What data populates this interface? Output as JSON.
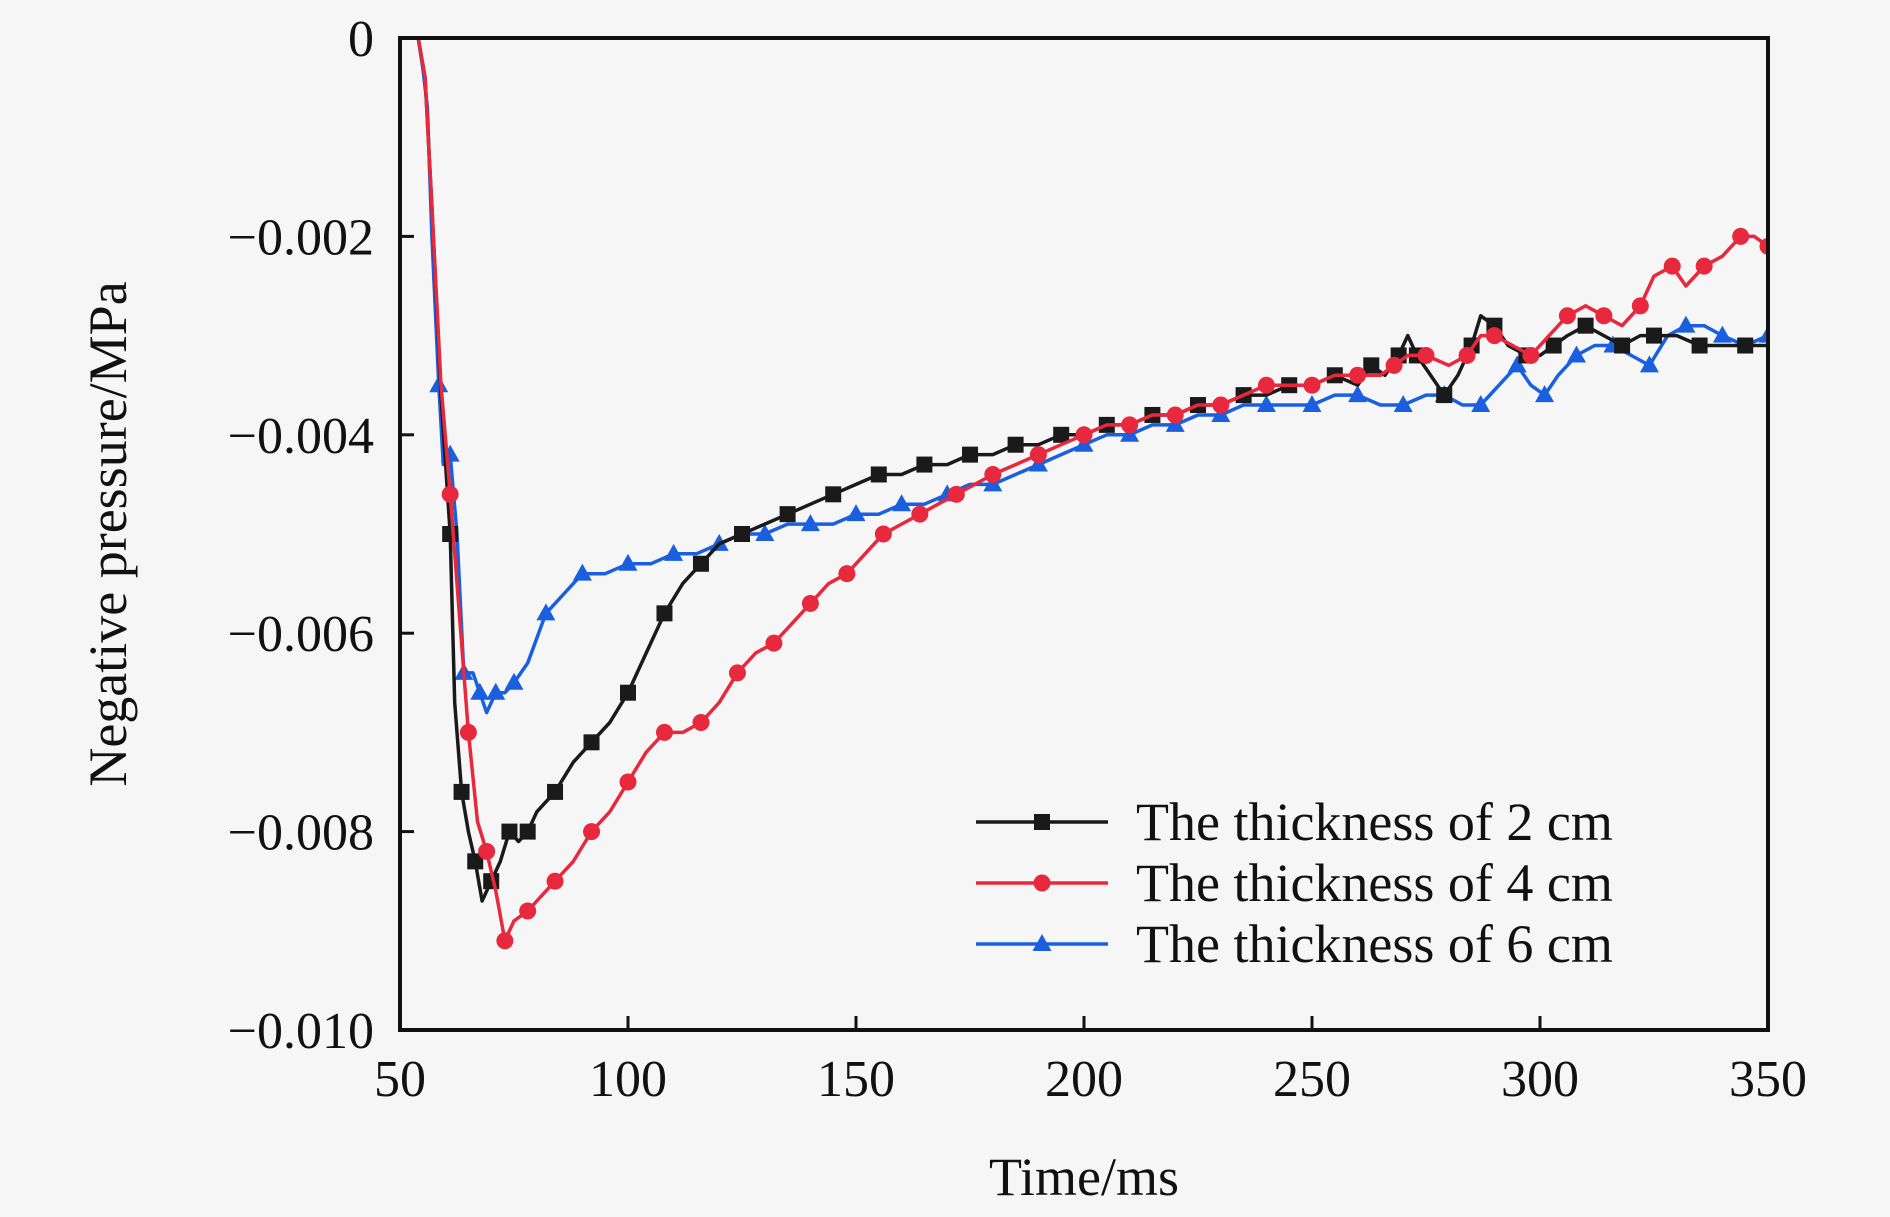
{
  "chart_data": {
    "type": "line",
    "xlabel": "Time/ms",
    "ylabel": "Negative pressure/MPa",
    "xlim": [
      50,
      350
    ],
    "ylim": [
      -0.01,
      0
    ],
    "xticks": [
      50,
      100,
      150,
      200,
      250,
      300,
      350
    ],
    "xtick_labels": [
      "50",
      "100",
      "150",
      "200",
      "250",
      "300",
      "350"
    ],
    "yticks": [
      0,
      -0.002,
      -0.004,
      -0.006,
      -0.008,
      -0.01
    ],
    "ytick_labels": [
      "0",
      "−0.002",
      "−0.004",
      "−0.006",
      "−0.008",
      "−0.010"
    ],
    "grid": false,
    "legend_position": "bottom-right",
    "series": [
      {
        "name": "The thickness of 2 cm",
        "color": "#1a1a1a",
        "marker": "square",
        "points": [
          [
            54,
            0
          ],
          [
            55.5,
            -0.0004
          ],
          [
            57,
            -0.0017
          ],
          [
            59,
            -0.0036
          ],
          [
            61,
            -0.005
          ],
          [
            62,
            -0.0067
          ],
          [
            63.5,
            -0.0076
          ],
          [
            65,
            -0.008
          ],
          [
            66.5,
            -0.0083
          ],
          [
            68,
            -0.0087
          ],
          [
            70,
            -0.0085
          ],
          [
            72,
            -0.0083
          ],
          [
            74,
            -0.008
          ],
          [
            76,
            -0.0081
          ],
          [
            78,
            -0.008
          ],
          [
            80,
            -0.0078
          ],
          [
            84,
            -0.0076
          ],
          [
            88,
            -0.0073
          ],
          [
            92,
            -0.0071
          ],
          [
            96,
            -0.0069
          ],
          [
            100,
            -0.0066
          ],
          [
            104,
            -0.0062
          ],
          [
            108,
            -0.0058
          ],
          [
            112,
            -0.0055
          ],
          [
            116,
            -0.0053
          ],
          [
            120,
            -0.0051
          ],
          [
            125,
            -0.005
          ],
          [
            130,
            -0.0049
          ],
          [
            135,
            -0.0048
          ],
          [
            140,
            -0.0047
          ],
          [
            145,
            -0.0046
          ],
          [
            150,
            -0.0045
          ],
          [
            155,
            -0.0044
          ],
          [
            160,
            -0.0044
          ],
          [
            165,
            -0.0043
          ],
          [
            170,
            -0.0043
          ],
          [
            175,
            -0.0042
          ],
          [
            180,
            -0.0042
          ],
          [
            185,
            -0.0041
          ],
          [
            190,
            -0.0041
          ],
          [
            195,
            -0.004
          ],
          [
            200,
            -0.004
          ],
          [
            205,
            -0.0039
          ],
          [
            210,
            -0.0039
          ],
          [
            215,
            -0.0038
          ],
          [
            220,
            -0.0038
          ],
          [
            225,
            -0.0037
          ],
          [
            230,
            -0.0037
          ],
          [
            235,
            -0.0036
          ],
          [
            240,
            -0.0036
          ],
          [
            245,
            -0.0035
          ],
          [
            250,
            -0.0035
          ],
          [
            255,
            -0.0034
          ],
          [
            260,
            -0.0035
          ],
          [
            263,
            -0.0033
          ],
          [
            266,
            -0.0034
          ],
          [
            269,
            -0.0032
          ],
          [
            271,
            -0.003
          ],
          [
            273,
            -0.0032
          ],
          [
            276,
            -0.0034
          ],
          [
            279,
            -0.0036
          ],
          [
            282,
            -0.0034
          ],
          [
            285,
            -0.0031
          ],
          [
            287,
            -0.0028
          ],
          [
            290,
            -0.0029
          ],
          [
            293,
            -0.0031
          ],
          [
            297,
            -0.0032
          ],
          [
            300,
            -0.0032
          ],
          [
            303,
            -0.0031
          ],
          [
            306,
            -0.003
          ],
          [
            310,
            -0.0029
          ],
          [
            314,
            -0.003
          ],
          [
            318,
            -0.0031
          ],
          [
            322,
            -0.003
          ],
          [
            325,
            -0.003
          ],
          [
            330,
            -0.003
          ],
          [
            335,
            -0.0031
          ],
          [
            340,
            -0.0031
          ],
          [
            345,
            -0.0031
          ],
          [
            350,
            -0.0031
          ]
        ]
      },
      {
        "name": "The thickness of 4 cm",
        "color": "#e8283c",
        "marker": "circle",
        "points": [
          [
            54,
            0
          ],
          [
            55.5,
            -0.0004
          ],
          [
            57,
            -0.0017
          ],
          [
            59,
            -0.0035
          ],
          [
            61,
            -0.0046
          ],
          [
            63,
            -0.0058
          ],
          [
            65,
            -0.007
          ],
          [
            67,
            -0.0079
          ],
          [
            69,
            -0.0082
          ],
          [
            71,
            -0.0086
          ],
          [
            73,
            -0.0091
          ],
          [
            75,
            -0.0089
          ],
          [
            78,
            -0.0088
          ],
          [
            80,
            -0.0087
          ],
          [
            84,
            -0.0085
          ],
          [
            88,
            -0.0083
          ],
          [
            92,
            -0.008
          ],
          [
            96,
            -0.0078
          ],
          [
            100,
            -0.0075
          ],
          [
            104,
            -0.0072
          ],
          [
            108,
            -0.007
          ],
          [
            112,
            -0.007
          ],
          [
            116,
            -0.0069
          ],
          [
            120,
            -0.0067
          ],
          [
            124,
            -0.0064
          ],
          [
            128,
            -0.0062
          ],
          [
            132,
            -0.0061
          ],
          [
            136,
            -0.0059
          ],
          [
            140,
            -0.0057
          ],
          [
            144,
            -0.0055
          ],
          [
            148,
            -0.0054
          ],
          [
            152,
            -0.0052
          ],
          [
            156,
            -0.005
          ],
          [
            160,
            -0.0049
          ],
          [
            164,
            -0.0048
          ],
          [
            168,
            -0.0047
          ],
          [
            172,
            -0.0046
          ],
          [
            176,
            -0.0045
          ],
          [
            180,
            -0.0044
          ],
          [
            185,
            -0.0043
          ],
          [
            190,
            -0.0042
          ],
          [
            195,
            -0.0041
          ],
          [
            200,
            -0.004
          ],
          [
            205,
            -0.0039
          ],
          [
            210,
            -0.0039
          ],
          [
            215,
            -0.0038
          ],
          [
            220,
            -0.0038
          ],
          [
            225,
            -0.0037
          ],
          [
            230,
            -0.0037
          ],
          [
            235,
            -0.0036
          ],
          [
            240,
            -0.0035
          ],
          [
            245,
            -0.0035
          ],
          [
            250,
            -0.0035
          ],
          [
            255,
            -0.0034
          ],
          [
            260,
            -0.0034
          ],
          [
            265,
            -0.0034
          ],
          [
            268,
            -0.0033
          ],
          [
            271,
            -0.0032
          ],
          [
            275,
            -0.0032
          ],
          [
            280,
            -0.0033
          ],
          [
            284,
            -0.0032
          ],
          [
            287,
            -0.003
          ],
          [
            290,
            -0.003
          ],
          [
            294,
            -0.0031
          ],
          [
            298,
            -0.0032
          ],
          [
            302,
            -0.003
          ],
          [
            306,
            -0.0028
          ],
          [
            310,
            -0.0027
          ],
          [
            314,
            -0.0028
          ],
          [
            318,
            -0.0029
          ],
          [
            322,
            -0.0027
          ],
          [
            325,
            -0.0024
          ],
          [
            329,
            -0.0023
          ],
          [
            332,
            -0.0025
          ],
          [
            336,
            -0.0023
          ],
          [
            340,
            -0.0022
          ],
          [
            344,
            -0.002
          ],
          [
            347,
            -0.002
          ],
          [
            350,
            -0.0021
          ]
        ]
      },
      {
        "name": "The thickness of 6 cm",
        "color": "#1a5fe0",
        "marker": "triangle",
        "points": [
          [
            54,
            0
          ],
          [
            55,
            -0.0003
          ],
          [
            56,
            -0.0007
          ],
          [
            57,
            -0.002
          ],
          [
            58.5,
            -0.0035
          ],
          [
            59.5,
            -0.0043
          ],
          [
            61,
            -0.0042
          ],
          [
            62.5,
            -0.005
          ],
          [
            64,
            -0.0064
          ],
          [
            66,
            -0.0064
          ],
          [
            67.5,
            -0.0066
          ],
          [
            69,
            -0.0068
          ],
          [
            71,
            -0.0066
          ],
          [
            73,
            -0.0066
          ],
          [
            75,
            -0.0065
          ],
          [
            78,
            -0.0063
          ],
          [
            82,
            -0.0058
          ],
          [
            86,
            -0.0056
          ],
          [
            90,
            -0.0054
          ],
          [
            95,
            -0.0054
          ],
          [
            100,
            -0.0053
          ],
          [
            105,
            -0.0053
          ],
          [
            110,
            -0.0052
          ],
          [
            115,
            -0.0052
          ],
          [
            120,
            -0.0051
          ],
          [
            125,
            -0.005
          ],
          [
            130,
            -0.005
          ],
          [
            135,
            -0.0049
          ],
          [
            140,
            -0.0049
          ],
          [
            145,
            -0.0049
          ],
          [
            150,
            -0.0048
          ],
          [
            155,
            -0.0048
          ],
          [
            160,
            -0.0047
          ],
          [
            165,
            -0.0047
          ],
          [
            170,
            -0.0046
          ],
          [
            175,
            -0.0045
          ],
          [
            180,
            -0.0045
          ],
          [
            185,
            -0.0044
          ],
          [
            190,
            -0.0043
          ],
          [
            195,
            -0.0042
          ],
          [
            200,
            -0.0041
          ],
          [
            205,
            -0.004
          ],
          [
            210,
            -0.004
          ],
          [
            215,
            -0.0039
          ],
          [
            220,
            -0.0039
          ],
          [
            225,
            -0.0038
          ],
          [
            230,
            -0.0038
          ],
          [
            235,
            -0.0037
          ],
          [
            240,
            -0.0037
          ],
          [
            245,
            -0.0037
          ],
          [
            250,
            -0.0037
          ],
          [
            255,
            -0.0036
          ],
          [
            260,
            -0.0036
          ],
          [
            265,
            -0.0037
          ],
          [
            270,
            -0.0037
          ],
          [
            275,
            -0.0036
          ],
          [
            279,
            -0.0036
          ],
          [
            283,
            -0.0037
          ],
          [
            287,
            -0.0037
          ],
          [
            291,
            -0.0035
          ],
          [
            295,
            -0.0033
          ],
          [
            298,
            -0.0035
          ],
          [
            301,
            -0.0036
          ],
          [
            304,
            -0.0034
          ],
          [
            308,
            -0.0032
          ],
          [
            312,
            -0.0031
          ],
          [
            316,
            -0.0031
          ],
          [
            320,
            -0.0032
          ],
          [
            324,
            -0.0033
          ],
          [
            328,
            -0.003
          ],
          [
            332,
            -0.0029
          ],
          [
            336,
            -0.0029
          ],
          [
            340,
            -0.003
          ],
          [
            345,
            -0.0031
          ],
          [
            350,
            -0.003
          ]
        ]
      }
    ]
  }
}
